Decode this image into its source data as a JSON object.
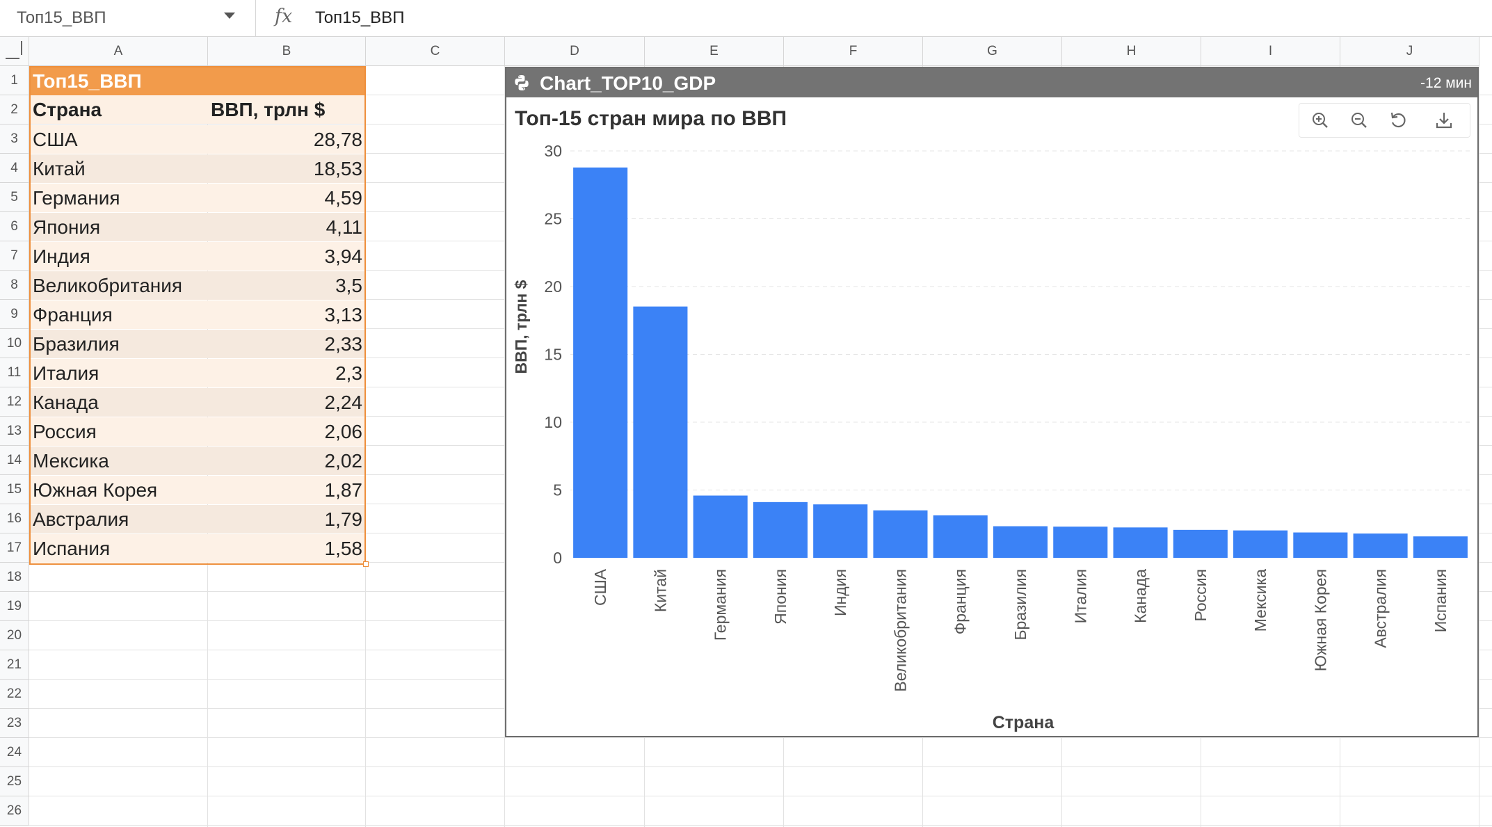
{
  "formula_bar": {
    "name_box": "Топ15_ВВП",
    "fx_icon": "fx-icon",
    "formula": "Топ15_ВВП"
  },
  "columns": [
    "A",
    "B",
    "C",
    "D",
    "E",
    "F",
    "G",
    "H",
    "I",
    "J"
  ],
  "rows": [
    "1",
    "2",
    "3",
    "4",
    "5",
    "6",
    "7",
    "8",
    "9",
    "10",
    "11",
    "12",
    "13",
    "14",
    "15",
    "16",
    "17",
    "18",
    "19",
    "20",
    "21",
    "22",
    "23",
    "24",
    "25",
    "26"
  ],
  "table": {
    "title": "Топ15_ВВП",
    "headers": [
      "Страна",
      "ВВП, трлн $"
    ],
    "rows": [
      [
        "США",
        "28,78"
      ],
      [
        "Китай",
        "18,53"
      ],
      [
        "Германия",
        "4,59"
      ],
      [
        "Япония",
        "4,11"
      ],
      [
        "Индия",
        "3,94"
      ],
      [
        "Великобритания",
        "3,5"
      ],
      [
        "Франция",
        "3,13"
      ],
      [
        "Бразилия",
        "2,33"
      ],
      [
        "Италия",
        "2,3"
      ],
      [
        "Канада",
        "2,24"
      ],
      [
        "Россия",
        "2,06"
      ],
      [
        "Мексика",
        "2,02"
      ],
      [
        "Южная Корея",
        "1,87"
      ],
      [
        "Австралия",
        "1,79"
      ],
      [
        "Испания",
        "1,58"
      ]
    ],
    "header_color": "#f29b4b",
    "border_color": "#ee8f3c"
  },
  "chart_object": {
    "name": "Chart_TOP10_GDP",
    "age": "-12 мин",
    "icon": "python-icon",
    "toolbar": [
      "zoom-in-icon",
      "zoom-out-icon",
      "reset-icon",
      "download-icon"
    ]
  },
  "chart_data": {
    "type": "bar",
    "title": "Топ-15 стран мира по ВВП",
    "xlabel": "Страна",
    "ylabel": "ВВП, трлн $",
    "categories": [
      "США",
      "Китай",
      "Германия",
      "Япония",
      "Индия",
      "Великобритания",
      "Франция",
      "Бразилия",
      "Италия",
      "Канада",
      "Россия",
      "Мексика",
      "Южная Корея",
      "Австралия",
      "Испания"
    ],
    "values": [
      28.78,
      18.53,
      4.59,
      4.11,
      3.94,
      3.5,
      3.13,
      2.33,
      2.3,
      2.24,
      2.06,
      2.02,
      1.87,
      1.79,
      1.58
    ],
    "ylim": [
      0,
      30
    ],
    "yticks": [
      "0",
      "5",
      "10",
      "15",
      "20",
      "25",
      "30"
    ],
    "grid": true,
    "bar_color": "#3b82f6"
  }
}
